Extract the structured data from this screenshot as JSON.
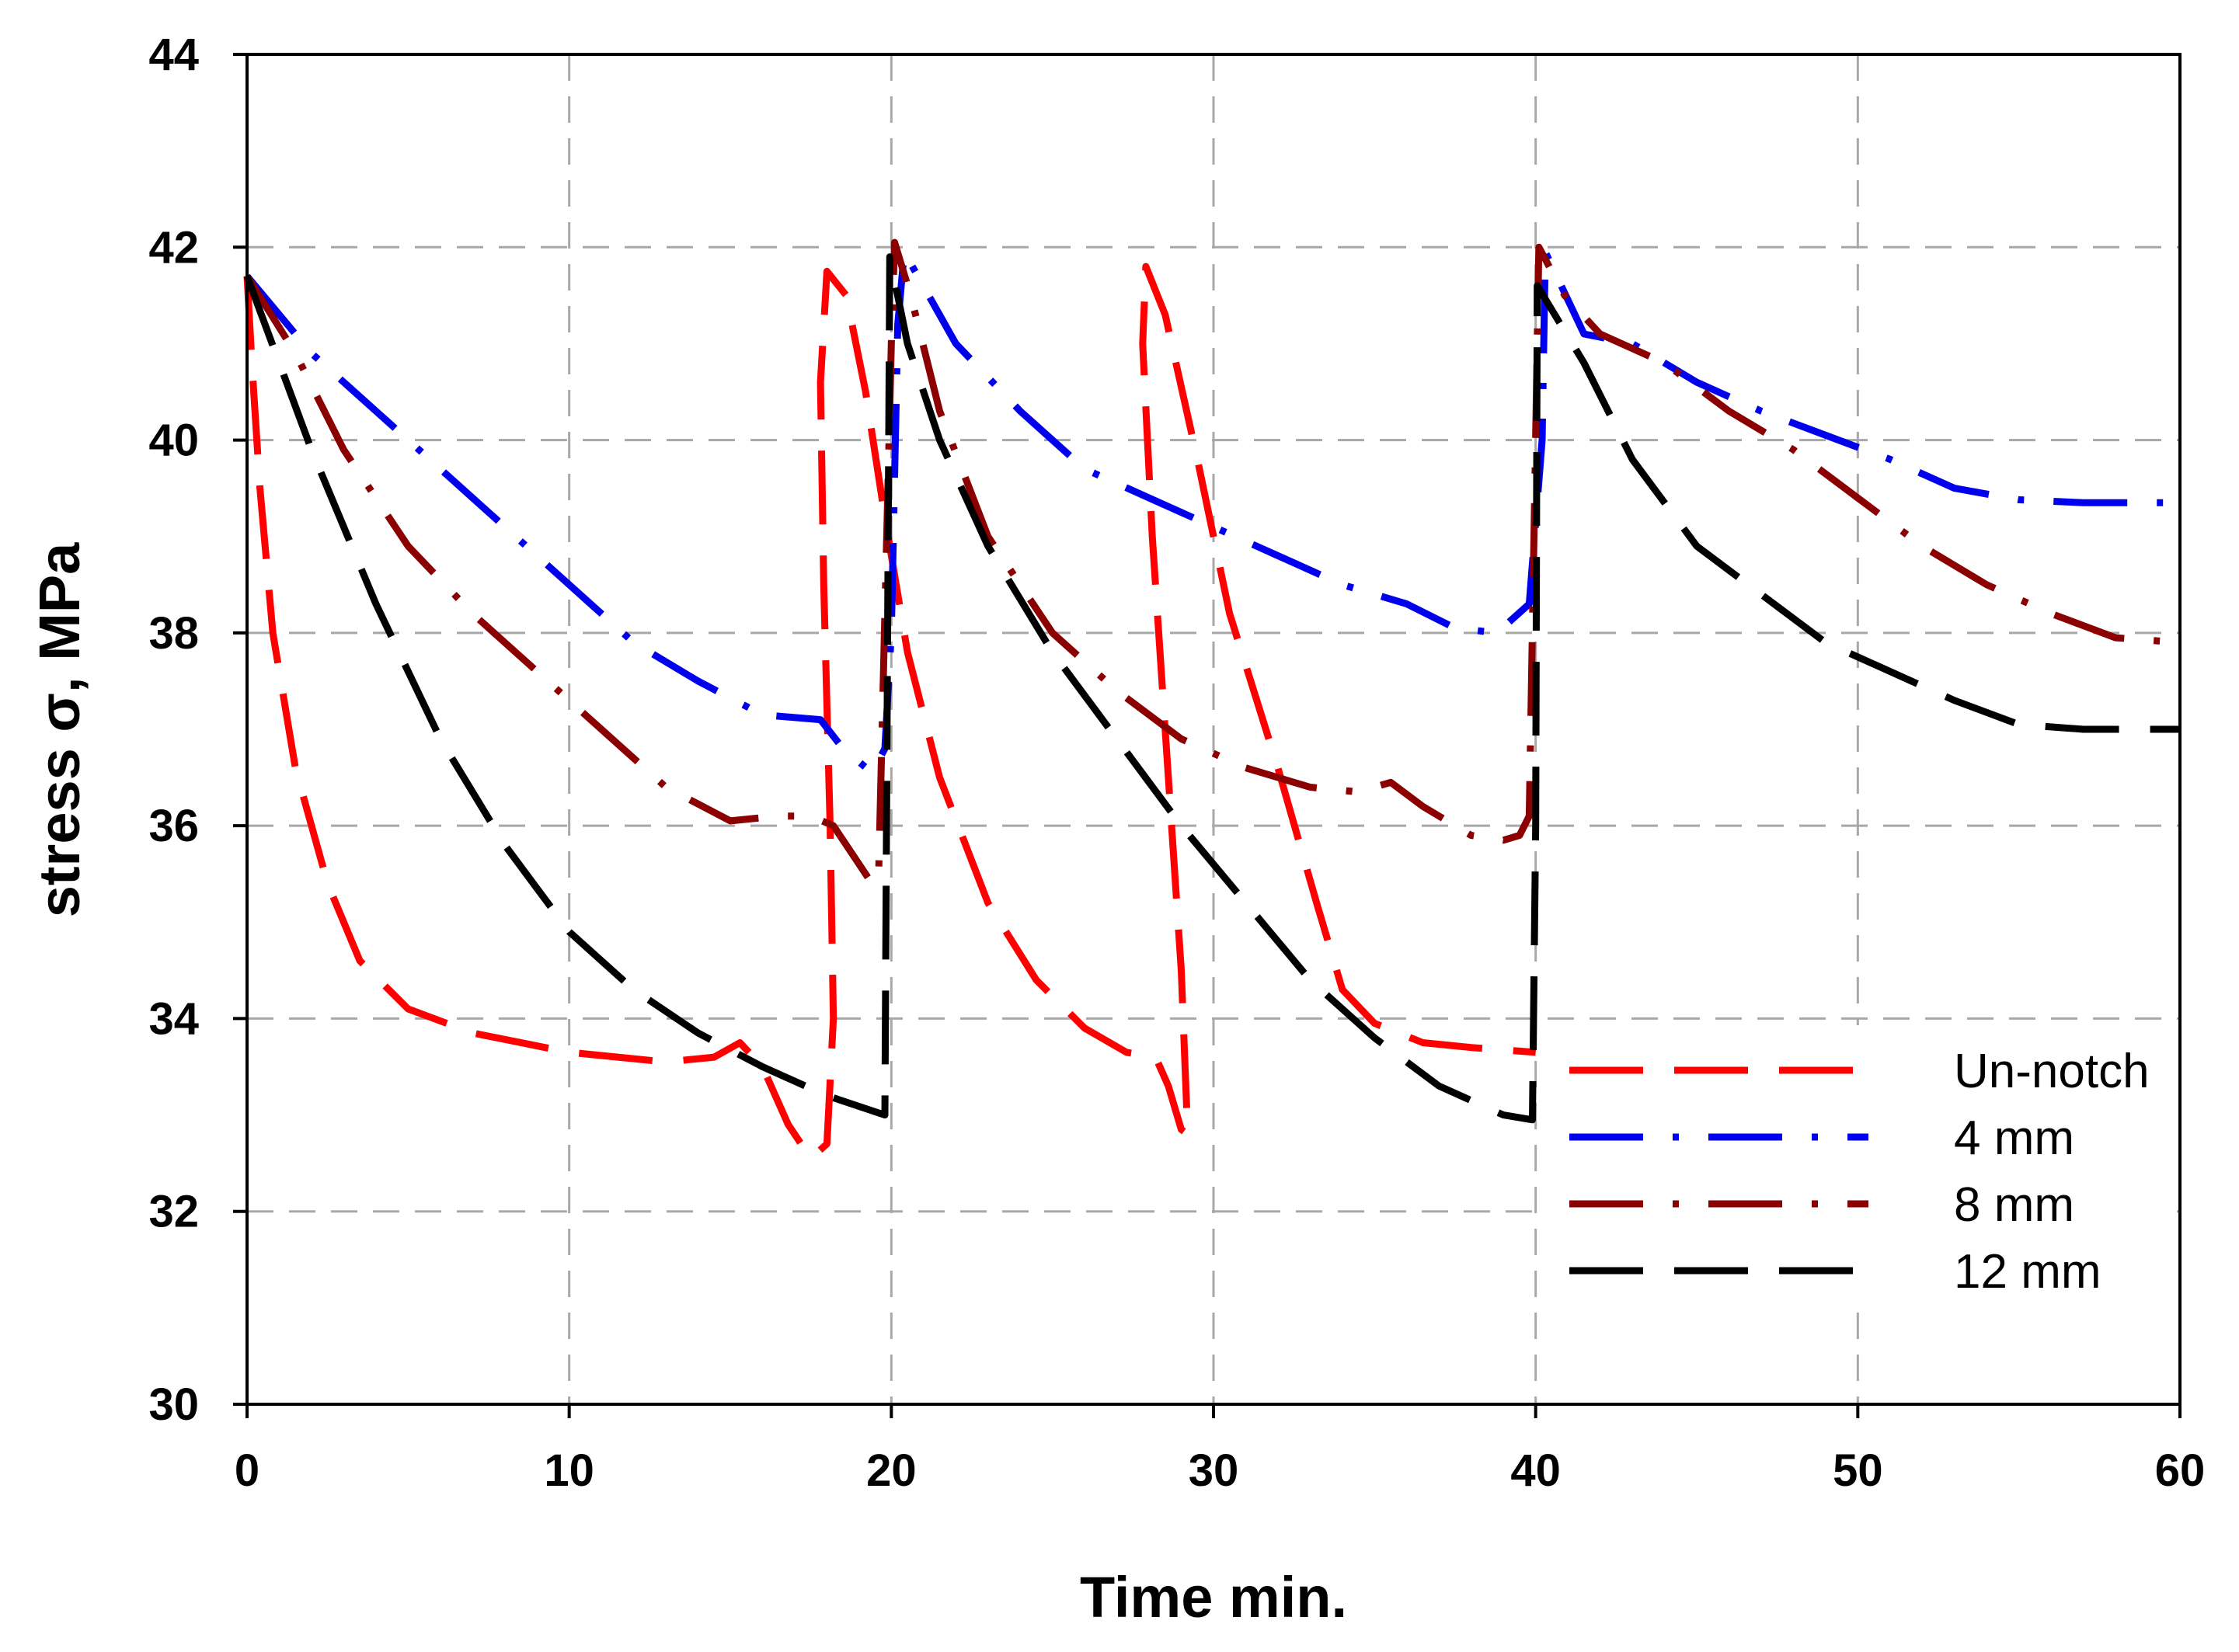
{
  "chart_data": {
    "type": "line",
    "title": "",
    "xlabel": "Time min.",
    "ylabel": "stress σ, MPa",
    "xlim": [
      0,
      60
    ],
    "ylim": [
      30,
      44
    ],
    "xticks": [
      0,
      10,
      20,
      30,
      40,
      50,
      60
    ],
    "yticks": [
      30,
      32,
      34,
      36,
      38,
      40,
      42,
      44
    ],
    "grid": true,
    "legend_position": "lower-right",
    "series": [
      {
        "name": "Un-notch",
        "color": "#ff0000",
        "dash": "long-dash",
        "points": [
          [
            0,
            41.7
          ],
          [
            0.15,
            40.8
          ],
          [
            0.4,
            39.5
          ],
          [
            0.8,
            38.0
          ],
          [
            1.5,
            36.6
          ],
          [
            2.5,
            35.4
          ],
          [
            3.5,
            34.6
          ],
          [
            5,
            34.1
          ],
          [
            7,
            33.85
          ],
          [
            10,
            33.65
          ],
          [
            13,
            33.55
          ],
          [
            14.5,
            33.6
          ],
          [
            15.3,
            33.75
          ],
          [
            16,
            33.5
          ],
          [
            16.8,
            32.9
          ],
          [
            17.5,
            32.55
          ],
          [
            18.0,
            32.7
          ],
          [
            18.2,
            34.0
          ],
          [
            18.1,
            36.0
          ],
          [
            17.9,
            38.5
          ],
          [
            17.8,
            40.6
          ],
          [
            18.0,
            41.75
          ],
          [
            18.6,
            41.5
          ],
          [
            19.2,
            40.5
          ],
          [
            19.8,
            39.2
          ],
          [
            20.5,
            37.8
          ],
          [
            21.5,
            36.5
          ],
          [
            23,
            35.2
          ],
          [
            24.5,
            34.4
          ],
          [
            26,
            33.9
          ],
          [
            27.3,
            33.65
          ],
          [
            28.2,
            33.6
          ],
          [
            28.6,
            33.3
          ],
          [
            29.0,
            32.85
          ],
          [
            29.2,
            32.8
          ],
          [
            29.0,
            34.5
          ],
          [
            28.6,
            36.5
          ],
          [
            28.1,
            39.0
          ],
          [
            27.8,
            41.0
          ],
          [
            27.9,
            41.8
          ],
          [
            28.5,
            41.3
          ],
          [
            29.5,
            39.8
          ],
          [
            30.5,
            38.2
          ],
          [
            32.0,
            36.6
          ],
          [
            33.2,
            35.2
          ],
          [
            34.0,
            34.3
          ],
          [
            35.0,
            33.95
          ],
          [
            36.5,
            33.75
          ],
          [
            38,
            33.7
          ],
          [
            40.0,
            33.65
          ]
        ]
      },
      {
        "name": "4 mm",
        "color": "#0000ee",
        "dash": "dash-dot",
        "points": [
          [
            0,
            41.7
          ],
          [
            2,
            40.9
          ],
          [
            4,
            40.3
          ],
          [
            6,
            39.7
          ],
          [
            8,
            39.1
          ],
          [
            10,
            38.5
          ],
          [
            12,
            37.9
          ],
          [
            14,
            37.5
          ],
          [
            16,
            37.15
          ],
          [
            17.8,
            37.1
          ],
          [
            18.5,
            36.8
          ],
          [
            19.4,
            36.55
          ],
          [
            19.8,
            36.8
          ],
          [
            20.0,
            38.0
          ],
          [
            20.2,
            41.2
          ],
          [
            20.4,
            41.95
          ],
          [
            22,
            41.0
          ],
          [
            24,
            40.3
          ],
          [
            26,
            39.7
          ],
          [
            28,
            39.4
          ],
          [
            30,
            39.1
          ],
          [
            32,
            38.8
          ],
          [
            34,
            38.5
          ],
          [
            36,
            38.3
          ],
          [
            37.5,
            38.05
          ],
          [
            38.8,
            38.0
          ],
          [
            39.8,
            38.3
          ],
          [
            40.2,
            40.0
          ],
          [
            40.3,
            41.95
          ],
          [
            41.5,
            41.1
          ],
          [
            43,
            41.0
          ],
          [
            45,
            40.6
          ],
          [
            47,
            40.3
          ],
          [
            49,
            40.05
          ],
          [
            51,
            39.8
          ],
          [
            53,
            39.5
          ],
          [
            55,
            39.38
          ],
          [
            57,
            39.35
          ],
          [
            60,
            39.35
          ]
        ]
      },
      {
        "name": "8 mm",
        "color": "#8b0000",
        "dash": "dash-dot",
        "points": [
          [
            0,
            41.7
          ],
          [
            1.5,
            40.9
          ],
          [
            3,
            39.9
          ],
          [
            5,
            38.9
          ],
          [
            7,
            38.2
          ],
          [
            9,
            37.6
          ],
          [
            11,
            37.0
          ],
          [
            13,
            36.4
          ],
          [
            15,
            36.05
          ],
          [
            16.5,
            36.1
          ],
          [
            17.5,
            36.1
          ],
          [
            18.2,
            36.0
          ],
          [
            18.8,
            35.7
          ],
          [
            19.3,
            35.45
          ],
          [
            19.6,
            35.4
          ],
          [
            20.0,
            41.0
          ],
          [
            20.1,
            42.05
          ],
          [
            20.6,
            41.5
          ],
          [
            21.5,
            40.3
          ],
          [
            23,
            39.0
          ],
          [
            25,
            38.0
          ],
          [
            27,
            37.4
          ],
          [
            29,
            36.9
          ],
          [
            31,
            36.6
          ],
          [
            33,
            36.4
          ],
          [
            34.5,
            36.35
          ],
          [
            35.5,
            36.45
          ],
          [
            36.5,
            36.2
          ],
          [
            38,
            35.9
          ],
          [
            39.0,
            35.85
          ],
          [
            39.5,
            35.9
          ],
          [
            39.8,
            36.1
          ],
          [
            40.1,
            42.0
          ],
          [
            40.9,
            41.5
          ],
          [
            42,
            41.1
          ],
          [
            44,
            40.8
          ],
          [
            46,
            40.3
          ],
          [
            48,
            39.9
          ],
          [
            50,
            39.4
          ],
          [
            52,
            38.9
          ],
          [
            54,
            38.5
          ],
          [
            56,
            38.2
          ],
          [
            58,
            37.95
          ],
          [
            60,
            37.9
          ]
        ]
      },
      {
        "name": "12 mm",
        "color": "#000000",
        "dash": "long-dash",
        "points": [
          [
            0,
            41.7
          ],
          [
            1,
            40.8
          ],
          [
            2,
            39.9
          ],
          [
            4,
            38.3
          ],
          [
            6,
            36.9
          ],
          [
            8,
            35.8
          ],
          [
            10,
            34.9
          ],
          [
            12,
            34.3
          ],
          [
            14,
            33.85
          ],
          [
            16,
            33.5
          ],
          [
            18,
            33.2
          ],
          [
            19.8,
            33.0
          ],
          [
            19.85,
            36.0
          ],
          [
            19.95,
            41.9
          ],
          [
            20.5,
            41.0
          ],
          [
            21.5,
            40.0
          ],
          [
            23,
            38.9
          ],
          [
            25,
            37.8
          ],
          [
            27,
            36.9
          ],
          [
            29,
            36.0
          ],
          [
            31,
            35.2
          ],
          [
            33,
            34.4
          ],
          [
            35,
            33.8
          ],
          [
            37,
            33.3
          ],
          [
            39,
            33.0
          ],
          [
            39.9,
            32.95
          ],
          [
            40.0,
            36.0
          ],
          [
            40.05,
            41.6
          ],
          [
            41.5,
            40.8
          ],
          [
            43,
            39.8
          ],
          [
            45,
            38.9
          ],
          [
            47,
            38.4
          ],
          [
            49,
            37.9
          ],
          [
            51,
            37.6
          ],
          [
            53,
            37.3
          ],
          [
            55,
            37.05
          ],
          [
            57,
            37.0
          ],
          [
            60,
            37.0
          ]
        ]
      }
    ]
  }
}
